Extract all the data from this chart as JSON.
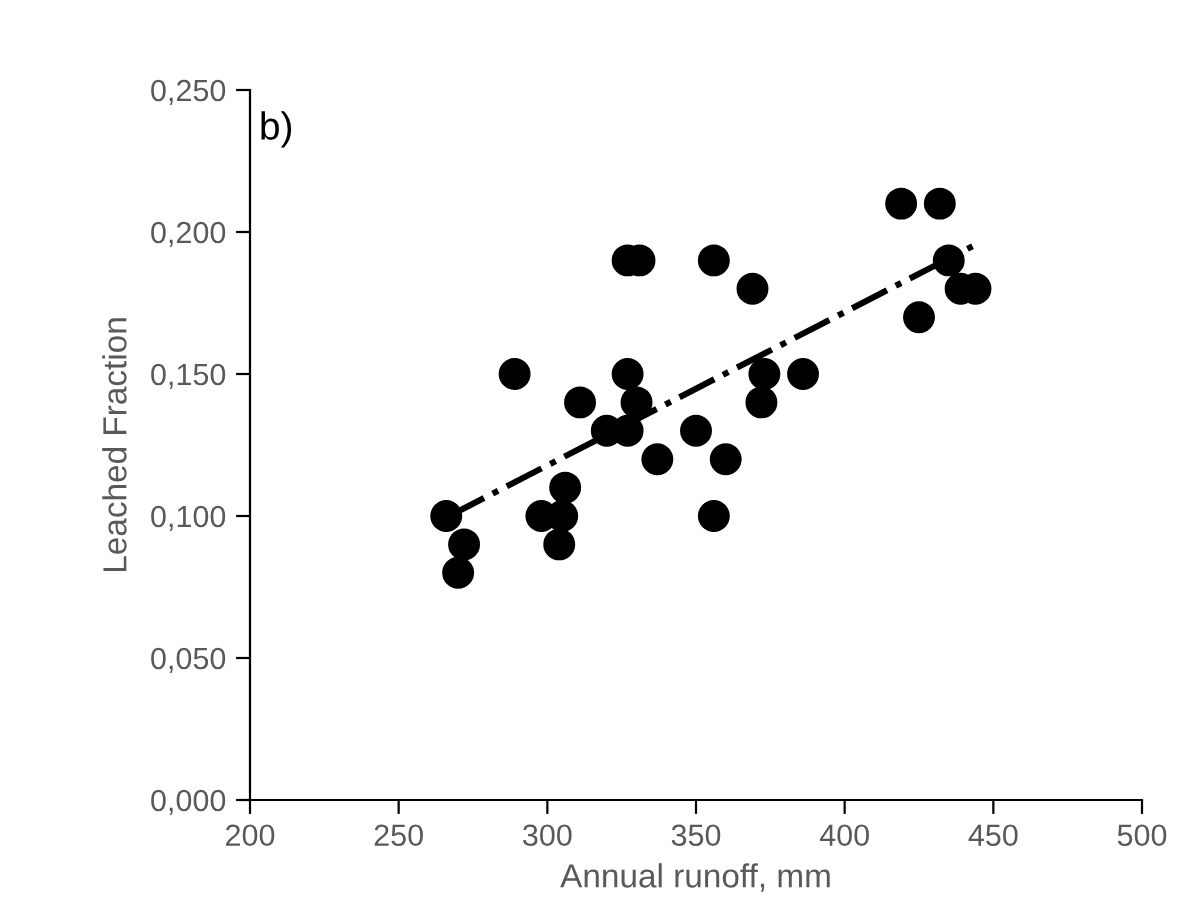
{
  "chart_data": {
    "type": "scatter",
    "xlabel": "Annual runoff, mm",
    "ylabel": "Leached Fraction",
    "annotations": [
      "b)"
    ],
    "series": [
      {
        "color": "#000000",
        "marker": "circle",
        "x": [
          266,
          270,
          272,
          289,
          298,
          304,
          305,
          306,
          311,
          320,
          327,
          327,
          327,
          330,
          331,
          337,
          350,
          356,
          356,
          360,
          369,
          372,
          373,
          386,
          419,
          425,
          432,
          435,
          439,
          444
        ],
        "values": [
          0.1,
          0.08,
          0.09,
          0.15,
          0.1,
          0.09,
          0.1,
          0.11,
          0.14,
          0.13,
          0.19,
          0.15,
          0.13,
          0.14,
          0.19,
          0.12,
          0.13,
          0.19,
          0.1,
          0.12,
          0.18,
          0.14,
          0.15,
          0.15,
          0.21,
          0.17,
          0.21,
          0.19,
          0.18,
          0.18
        ]
      },
      {
        "type": "line",
        "color": "#000000",
        "line_style": "dashdot",
        "x": [
          267,
          443
        ],
        "values": [
          0.1,
          0.195
        ]
      }
    ],
    "xlim": [
      200,
      500
    ],
    "xticks": [
      200,
      250,
      300,
      350,
      400,
      450,
      500
    ],
    "ylim": [
      0,
      0.25
    ],
    "yticks": [
      {
        "value": 0,
        "label": "0,000"
      },
      {
        "value": 0.05,
        "label": "0,050"
      },
      {
        "value": 0.1,
        "label": "0,100"
      },
      {
        "value": 0.15,
        "label": "0,150"
      },
      {
        "value": 0.2,
        "label": "0,200"
      },
      {
        "value": 0.25,
        "label": "0,250"
      }
    ],
    "grid": false,
    "legend": false
  }
}
